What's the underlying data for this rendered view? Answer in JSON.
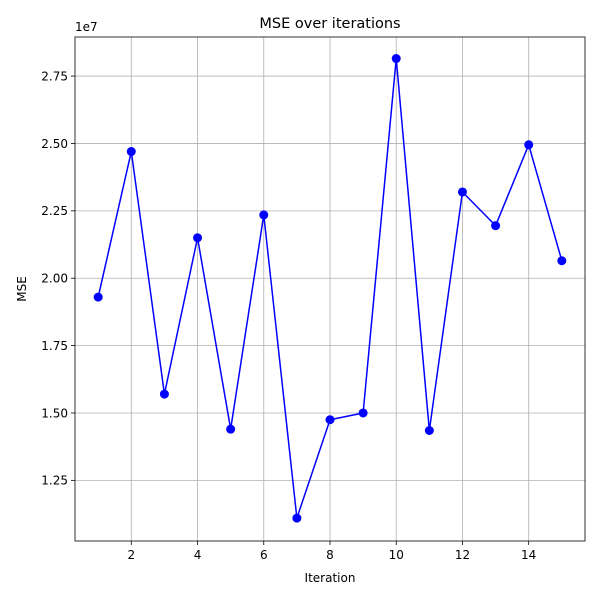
{
  "chart_data": {
    "type": "line",
    "title": "MSE over iterations",
    "xlabel": "Iteration",
    "ylabel": "MSE",
    "y_offset_text": "1e7",
    "x_ticks": [
      2,
      4,
      6,
      8,
      10,
      12,
      14
    ],
    "y_ticks": [
      1.25,
      1.5,
      1.75,
      2.0,
      2.25,
      2.5,
      2.75
    ],
    "y_tick_labels": [
      "1.25",
      "1.50",
      "1.75",
      "2.00",
      "2.25",
      "2.50",
      "2.75"
    ],
    "xlim": [
      0.3,
      15.7
    ],
    "ylim": [
      1.025,
      2.895
    ],
    "grid": true,
    "color": "#0000ff",
    "marker": "circle",
    "series": [
      {
        "x": [
          1,
          2,
          3,
          4,
          5,
          6,
          7,
          8,
          9,
          10,
          11,
          12,
          13,
          14,
          15
        ],
        "y": [
          1.93,
          2.47,
          1.57,
          2.15,
          1.44,
          2.235,
          1.11,
          1.475,
          1.5,
          2.815,
          1.435,
          2.32,
          2.195,
          2.495,
          2.065
        ]
      }
    ]
  }
}
